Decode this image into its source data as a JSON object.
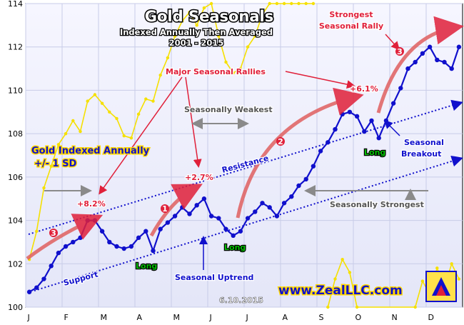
{
  "chart_data": {
    "type": "line",
    "title": "Gold Seasonals",
    "subtitle_lines": [
      "Indexed Annually Then Averaged",
      "2001 - 2015"
    ],
    "months": [
      "J",
      "F",
      "M",
      "A",
      "M",
      "J",
      "J",
      "A",
      "S",
      "O",
      "N",
      "D"
    ],
    "ylim": [
      100,
      114
    ],
    "yticks": [
      100,
      102,
      104,
      106,
      108,
      110,
      112,
      114
    ],
    "grid": true,
    "date_stamp": "6.10.2015",
    "watermark": "www.ZealLLC.com",
    "series": [
      {
        "name": "Gold Indexed Annually",
        "color": "#1010cc",
        "x": [
          0.1,
          0.3,
          0.5,
          0.7,
          0.9,
          1.1,
          1.3,
          1.5,
          1.7,
          1.9,
          2.1,
          2.3,
          2.5,
          2.7,
          2.9,
          3.1,
          3.3,
          3.5,
          3.7,
          3.9,
          4.1,
          4.3,
          4.5,
          4.7,
          4.9,
          5.1,
          5.3,
          5.5,
          5.7,
          5.9,
          6.1,
          6.3,
          6.5,
          6.7,
          6.9,
          7.1,
          7.3,
          7.5,
          7.7,
          7.9,
          8.1,
          8.3,
          8.5,
          8.7,
          8.9,
          9.1,
          9.3,
          9.5,
          9.7,
          9.9,
          10.1,
          10.3,
          10.5,
          10.7,
          10.9,
          11.1,
          11.3,
          11.5,
          11.7,
          11.9
        ],
        "y": [
          100.7,
          100.9,
          101.3,
          101.9,
          102.5,
          102.8,
          103.0,
          103.2,
          104.0,
          104.0,
          103.5,
          103.0,
          102.8,
          102.7,
          102.8,
          103.2,
          103.5,
          102.6,
          103.6,
          103.9,
          104.2,
          104.6,
          104.3,
          104.7,
          105.0,
          104.2,
          104.1,
          103.6,
          103.3,
          103.5,
          104.1,
          104.4,
          104.8,
          104.6,
          104.2,
          104.8,
          105.1,
          105.6,
          105.9,
          106.5,
          107.2,
          107.6,
          108.2,
          108.9,
          109.0,
          108.8,
          108.1,
          108.6,
          107.8,
          108.6,
          109.4,
          110.1,
          111.0,
          111.3,
          111.7,
          112.0,
          111.4,
          111.3,
          111.0,
          112.0
        ]
      },
      {
        "name": "+/- 1 SD",
        "color": "#f5e000",
        "x": [
          0.1,
          0.3,
          0.5,
          0.7,
          0.9,
          1.1,
          1.3,
          1.5,
          1.7,
          1.9,
          2.1,
          2.3,
          2.5,
          2.7,
          2.9,
          3.1,
          3.3,
          3.5,
          3.7,
          3.9,
          4.1,
          4.3,
          4.5,
          4.7,
          4.9,
          5.1,
          5.3,
          5.5,
          5.7,
          5.9,
          6.1,
          6.3,
          6.5,
          6.7,
          6.9,
          7.1,
          7.3,
          7.5,
          7.7,
          7.9
        ],
        "y": [
          102.2,
          103.5,
          105.5,
          106.5,
          107.5,
          108.0,
          108.6,
          108.1,
          109.5,
          109.8,
          109.4,
          109.0,
          108.7,
          107.9,
          107.8,
          108.9,
          109.6,
          109.5,
          110.7,
          111.5,
          112.5,
          113.2,
          113.6,
          113.0,
          113.8,
          114.0,
          112.5,
          111.3,
          110.8,
          111.0,
          112.0,
          112.5,
          113.5,
          114.0,
          114.0,
          114.0,
          114.0,
          114.0,
          114.0,
          114.0
        ]
      },
      {
        "name": "+/- 1 SD lower",
        "color": "#f5e000",
        "x": [
          8.3,
          8.5,
          8.7,
          8.9,
          9.1,
          10.7,
          10.9,
          11.1,
          11.3,
          11.5,
          11.7,
          11.9
        ],
        "y": [
          100.0,
          101.3,
          102.2,
          101.6,
          100.0,
          100.0,
          101.2,
          100.6,
          101.8,
          100.9,
          102.0,
          101.3
        ]
      }
    ],
    "annotations": {
      "legend_label": "Gold Indexed Annually",
      "legend_label_sd": "+/- 1 SD",
      "major_rallies": "Major Seasonal Rallies",
      "strongest_rally": [
        "Strongest",
        "Seasonal Rally"
      ],
      "seasonally_weakest": "Seasonally Weakest",
      "seasonally_strongest": "Seasonally Strongest",
      "resistance": "Resistance",
      "support": "Support",
      "seasonal_uptrend": "Seasonal Uptrend",
      "seasonal_breakout": [
        "Seasonal",
        "Breakout"
      ],
      "pct1": "+8.2%",
      "pct2": "+2.7%",
      "pct3": "+6.1%",
      "long": "Long",
      "n1": "1",
      "n2": "2",
      "n3": "3"
    }
  }
}
